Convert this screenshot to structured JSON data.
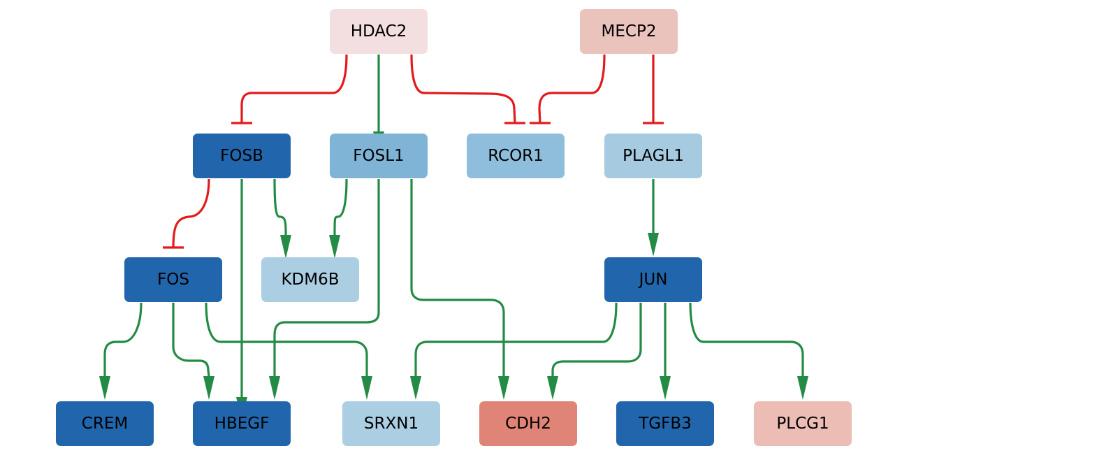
{
  "colors": {
    "activation": "#238b45",
    "inhibition": "#e31a1c",
    "text_dark": "#000000",
    "text_light": "#ffffff"
  },
  "nodes": [
    {
      "id": "HDAC2",
      "label": "HDAC2",
      "fill": "#f3dfdf",
      "text": "#000000"
    },
    {
      "id": "MECP2",
      "label": "MECP2",
      "fill": "#ebc3bd",
      "text": "#000000"
    },
    {
      "id": "FOSB",
      "label": "FOSB",
      "fill": "#2166ac",
      "text": "#000000"
    },
    {
      "id": "FOSL1",
      "label": "FOSL1",
      "fill": "#7fb4d6",
      "text": "#000000"
    },
    {
      "id": "RCOR1",
      "label": "RCOR1",
      "fill": "#8fbedd",
      "text": "#000000"
    },
    {
      "id": "PLAGL1",
      "label": "PLAGL1",
      "fill": "#a6cae0",
      "text": "#000000"
    },
    {
      "id": "FOS",
      "label": "FOS",
      "fill": "#2166ac",
      "text": "#000000"
    },
    {
      "id": "KDM6B",
      "label": "KDM6B",
      "fill": "#abcee3",
      "text": "#000000"
    },
    {
      "id": "JUN",
      "label": "JUN",
      "fill": "#2166ac",
      "text": "#000000"
    },
    {
      "id": "CREM",
      "label": "CREM",
      "fill": "#2166ac",
      "text": "#000000"
    },
    {
      "id": "HBEGF",
      "label": "HBEGF",
      "fill": "#2166ac",
      "text": "#000000"
    },
    {
      "id": "SRXN1",
      "label": "SRXN1",
      "fill": "#abcee3",
      "text": "#000000"
    },
    {
      "id": "CDH2",
      "label": "CDH2",
      "fill": "#df8476",
      "text": "#000000"
    },
    {
      "id": "TGFB3",
      "label": "TGFB3",
      "fill": "#2166ac",
      "text": "#000000"
    },
    {
      "id": "PLCG1",
      "label": "PLCG1",
      "fill": "#ebbdb5",
      "text": "#000000"
    }
  ],
  "edges": [
    {
      "from": "HDAC2",
      "to": "FOSB",
      "type": "inhibition"
    },
    {
      "from": "HDAC2",
      "to": "FOSL1",
      "type": "activation"
    },
    {
      "from": "HDAC2",
      "to": "RCOR1",
      "type": "inhibition"
    },
    {
      "from": "MECP2",
      "to": "RCOR1",
      "type": "inhibition"
    },
    {
      "from": "MECP2",
      "to": "PLAGL1",
      "type": "inhibition"
    },
    {
      "from": "FOSB",
      "to": "FOS",
      "type": "inhibition"
    },
    {
      "from": "FOSB",
      "to": "HBEGF",
      "type": "activation"
    },
    {
      "from": "FOSB",
      "to": "KDM6B",
      "type": "activation"
    },
    {
      "from": "FOSL1",
      "to": "KDM6B",
      "type": "activation"
    },
    {
      "from": "FOSL1",
      "to": "HBEGF",
      "type": "activation"
    },
    {
      "from": "FOSL1",
      "to": "CDH2",
      "type": "activation"
    },
    {
      "from": "PLAGL1",
      "to": "JUN",
      "type": "activation"
    },
    {
      "from": "FOS",
      "to": "CREM",
      "type": "activation"
    },
    {
      "from": "FOS",
      "to": "HBEGF",
      "type": "activation"
    },
    {
      "from": "FOS",
      "to": "SRXN1",
      "type": "activation"
    },
    {
      "from": "JUN",
      "to": "SRXN1",
      "type": "activation"
    },
    {
      "from": "JUN",
      "to": "CDH2",
      "type": "activation"
    },
    {
      "from": "JUN",
      "to": "TGFB3",
      "type": "activation"
    },
    {
      "from": "JUN",
      "to": "PLCG1",
      "type": "activation"
    }
  ]
}
